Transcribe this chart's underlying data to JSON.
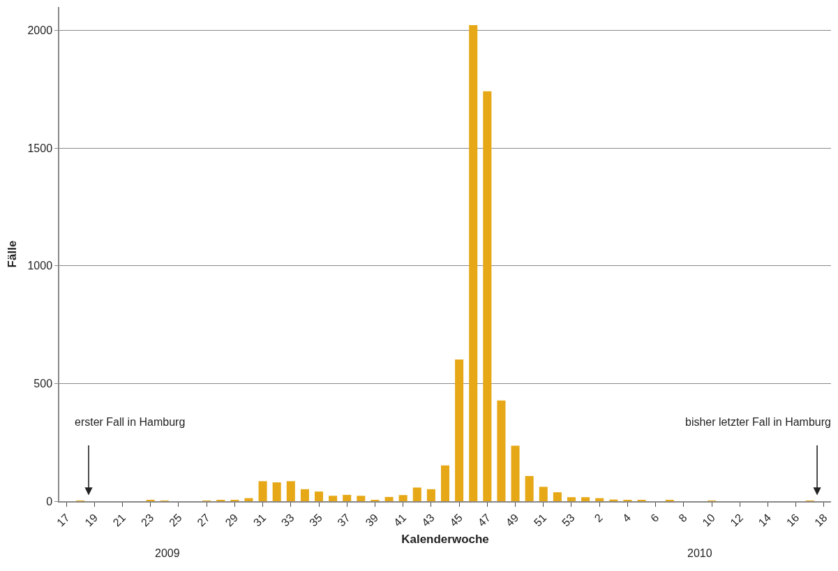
{
  "chart_data": {
    "type": "bar",
    "xlabel": "Kalenderwoche",
    "ylabel": "Fälle",
    "categories": [
      "17",
      null,
      "19",
      null,
      "21",
      null,
      "23",
      null,
      "25",
      null,
      "27",
      null,
      "29",
      null,
      "31",
      null,
      "33",
      null,
      "35",
      null,
      "37",
      null,
      "39",
      null,
      "41",
      null,
      "43",
      null,
      "45",
      null,
      "47",
      null,
      "49",
      null,
      "51",
      null,
      "53",
      null,
      "2",
      null,
      "4",
      null,
      "6",
      null,
      "8",
      null,
      "10",
      null,
      "12",
      null,
      "14",
      null,
      "16",
      null,
      "18"
    ],
    "values": [
      0,
      1,
      0,
      0,
      0,
      0,
      4,
      1,
      0,
      0,
      1,
      3,
      5,
      13,
      85,
      80,
      85,
      51,
      41,
      23,
      27,
      23,
      5,
      18,
      26,
      58,
      51,
      152,
      602,
      2023,
      1742,
      428,
      236,
      107,
      61,
      38,
      17,
      17,
      13,
      7,
      4,
      3,
      0,
      3,
      0,
      0,
      1,
      0,
      0,
      0,
      0,
      0,
      0,
      1,
      0
    ],
    "color": "#e6a817",
    "ylim": [
      0,
      2100
    ],
    "yticks": [
      0,
      500,
      1000,
      1500,
      2000
    ],
    "grid": "y",
    "annotations": [
      "erster Fall in Hamburg",
      "bisher letzter Fall in Hamburg",
      "2009",
      "2010"
    ]
  }
}
